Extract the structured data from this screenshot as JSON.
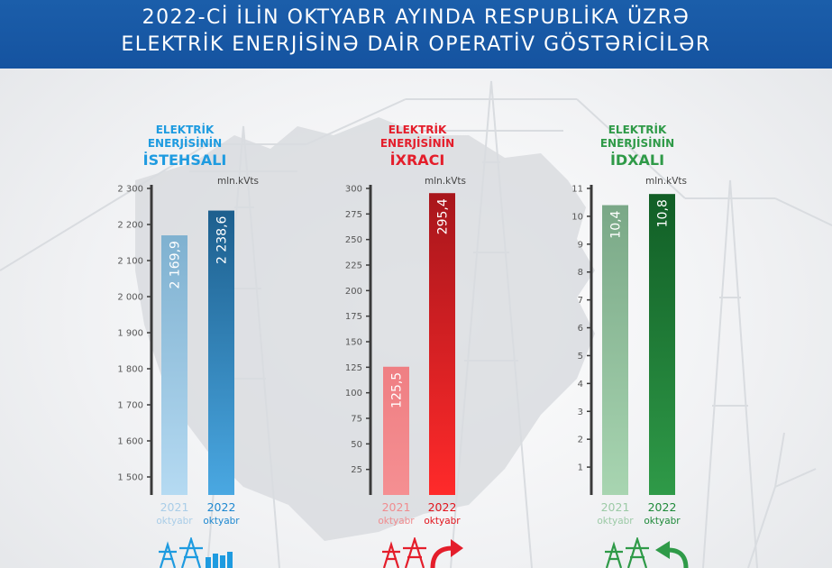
{
  "header": {
    "line1": "2022-Cİ İLİN OKTYABR AYINDA RESPUBLİKA ÜZRƏ",
    "line2": "ELEKTRİK ENERJİSİNƏ DAİR OPERATİV GÖSTƏRİCİLƏR"
  },
  "colors": {
    "header_bg": "#1a5aa7",
    "production": "#1e9be0",
    "export": "#e41e2b",
    "import": "#2f9a48"
  },
  "panels": [
    {
      "title_line1": "ELEKTRİK",
      "title_line2": "ENERJİSİNİN",
      "title_line3": "İSTEHSALI",
      "unit": "mln.kVts"
    },
    {
      "title_line1": "ELEKTRİK",
      "title_line2": "ENERJİSİNİN",
      "title_line3": "İXRACI",
      "unit": "mln.kVts"
    },
    {
      "title_line1": "ELEKTRİK",
      "title_line2": "ENERJİSİNİN",
      "title_line3": "İDXALI",
      "unit": "mln.kVts"
    }
  ],
  "chart_data": [
    {
      "type": "bar",
      "title": "ELEKTRİK ENERJİSİNİN İSTEHSALI",
      "ylabel": "mln.kVts",
      "categories": [
        "2021 oktyabr",
        "2022 oktyabr"
      ],
      "category_years": [
        "2021",
        "2022"
      ],
      "category_months": [
        "oktyabr",
        "oktyabr"
      ],
      "values": [
        2169.9,
        2238.6
      ],
      "value_labels": [
        "2 169,9",
        "2 238,6"
      ],
      "ylim": [
        1450,
        2300
      ],
      "yticks": [
        1500,
        1600,
        1700,
        1800,
        1900,
        2000,
        2100,
        2200,
        2300
      ],
      "ytick_labels": [
        "1 500",
        "1 600",
        "1 700",
        "1 800",
        "1 900",
        "2 000",
        "2 100",
        "2 200",
        "2 300"
      ],
      "bar_colors": [
        [
          "#b5daf2",
          "#7fb1d0"
        ],
        [
          "#4aa8e2",
          "#1d5f8e"
        ]
      ],
      "year_colors": [
        "#a9cde8",
        "#1e88d0"
      ]
    },
    {
      "type": "bar",
      "title": "ELEKTRİK ENERJİSİNİN İXRACI",
      "ylabel": "mln.kVts",
      "categories": [
        "2021 oktyabr",
        "2022 oktyabr"
      ],
      "category_years": [
        "2021",
        "2022"
      ],
      "category_months": [
        "oktyabr",
        "oktyabr"
      ],
      "values": [
        125.5,
        295.4
      ],
      "value_labels": [
        "125,5",
        "295,4"
      ],
      "ylim": [
        0,
        300
      ],
      "yticks": [
        25,
        50,
        75,
        100,
        125,
        150,
        175,
        200,
        225,
        250,
        275,
        300
      ],
      "ytick_labels": [
        "25",
        "50",
        "75",
        "100",
        "125",
        "150",
        "175",
        "200",
        "225",
        "250",
        "275",
        "300"
      ],
      "bar_colors": [
        [
          "#f58f92",
          "#ef7f83"
        ],
        [
          "#ff2a2a",
          "#a8161c"
        ]
      ],
      "year_colors": [
        "#f08c8f",
        "#e2141c"
      ]
    },
    {
      "type": "bar",
      "title": "ELEKTRİK ENERJİSİNİN İDXALI",
      "ylabel": "mln.kVts",
      "categories": [
        "2021 oktyabr",
        "2022 oktyabr"
      ],
      "category_years": [
        "2021",
        "2022"
      ],
      "category_months": [
        "oktyabr",
        "oktyabr"
      ],
      "values": [
        10.4,
        10.8
      ],
      "value_labels": [
        "10,4",
        "10,8"
      ],
      "ylim": [
        0,
        11
      ],
      "yticks": [
        1,
        2,
        3,
        4,
        5,
        6,
        7,
        8,
        9,
        10,
        11
      ],
      "ytick_labels": [
        "1",
        "2",
        "3",
        "4",
        "5",
        "6",
        "7",
        "8",
        "9",
        "10",
        "11"
      ],
      "bar_colors": [
        [
          "#a8d5b1",
          "#7aa887"
        ],
        [
          "#2f9a48",
          "#115e26"
        ]
      ],
      "year_colors": [
        "#9ccaa6",
        "#1f8a3a"
      ]
    }
  ]
}
